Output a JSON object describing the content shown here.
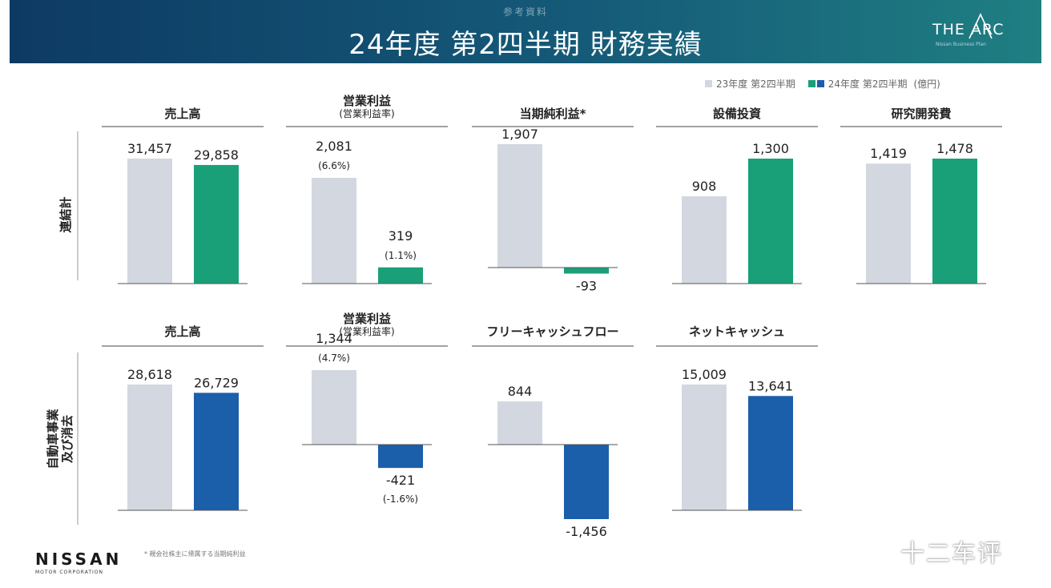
{
  "header": {
    "subtitle": "参考資料",
    "title": "24年度 第2四半期 財務実績",
    "logo_text": "THE ARC",
    "logo_tagline": "Nissan Business Plan"
  },
  "legend": {
    "label_a": "23年度 第2四半期",
    "label_b": "24年度 第2四半期",
    "unit": "(億円)",
    "color_a": "#d3d7e0",
    "color_b_consolidated": "#19a079",
    "color_b_auto": "#1b5eaa"
  },
  "row_labels": {
    "consolidated": "連結計",
    "auto_line1": "自動車事業",
    "auto_line2": "及び消去"
  },
  "footer": {
    "logo_word": "NISSAN",
    "logo_sub": "MOTOR CORPORATION",
    "footnote": "* 親会社株主に帰属する当期純利益",
    "watermark": "十二车评"
  },
  "chart_data": [
    {
      "type": "bar",
      "row": "連結計",
      "title": "売上高",
      "subtitle": "",
      "categories": [
        "23年度 第2四半期",
        "24年度 第2四半期"
      ],
      "values": [
        31457,
        29858
      ],
      "value_labels": [
        "31,457",
        "29,858"
      ],
      "sub_labels": [
        "",
        ""
      ],
      "color_b": "#19a079"
    },
    {
      "type": "bar",
      "row": "連結計",
      "title": "営業利益",
      "subtitle": "(営業利益率)",
      "categories": [
        "23年度 第2四半期",
        "24年度 第2四半期"
      ],
      "values": [
        2081,
        319
      ],
      "value_labels": [
        "2,081",
        "319"
      ],
      "sub_labels": [
        "(6.6%)",
        "(1.1%)"
      ],
      "color_b": "#19a079"
    },
    {
      "type": "bar",
      "row": "連結計",
      "title": "当期純利益*",
      "subtitle": "",
      "categories": [
        "23年度 第2四半期",
        "24年度 第2四半期"
      ],
      "values": [
        1907,
        -93
      ],
      "value_labels": [
        "1,907",
        "-93"
      ],
      "sub_labels": [
        "",
        ""
      ],
      "color_b": "#19a079"
    },
    {
      "type": "bar",
      "row": "連結計",
      "title": "設備投資",
      "subtitle": "",
      "categories": [
        "23年度 第2四半期",
        "24年度 第2四半期"
      ],
      "values": [
        908,
        1300
      ],
      "value_labels": [
        "908",
        "1,300"
      ],
      "sub_labels": [
        "",
        ""
      ],
      "color_b": "#19a079"
    },
    {
      "type": "bar",
      "row": "連結計",
      "title": "研究開発費",
      "subtitle": "",
      "categories": [
        "23年度 第2四半期",
        "24年度 第2四半期"
      ],
      "values": [
        1419,
        1478
      ],
      "value_labels": [
        "1,419",
        "1,478"
      ],
      "sub_labels": [
        "",
        ""
      ],
      "color_b": "#19a079"
    },
    {
      "type": "bar",
      "row": "自動車事業 及び消去",
      "title": "売上高",
      "subtitle": "",
      "categories": [
        "23年度 第2四半期",
        "24年度 第2四半期"
      ],
      "values": [
        28618,
        26729
      ],
      "value_labels": [
        "28,618",
        "26,729"
      ],
      "sub_labels": [
        "",
        ""
      ],
      "color_b": "#1b5eaa"
    },
    {
      "type": "bar",
      "row": "自動車事業 及び消去",
      "title": "営業利益",
      "subtitle": "(営業利益率)",
      "categories": [
        "23年度 第2四半期",
        "24年度 第2四半期"
      ],
      "values": [
        1344,
        -421
      ],
      "value_labels": [
        "1,344",
        "-421"
      ],
      "sub_labels": [
        "(4.7%)",
        "(-1.6%)"
      ],
      "color_b": "#1b5eaa"
    },
    {
      "type": "bar",
      "row": "自動車事業 及び消去",
      "title": "フリーキャッシュフロー",
      "subtitle": "",
      "categories": [
        "23年度 第2四半期",
        "24年度 第2四半期"
      ],
      "values": [
        844,
        -1456
      ],
      "value_labels": [
        "844",
        "-1,456"
      ],
      "sub_labels": [
        "",
        ""
      ],
      "color_b": "#1b5eaa"
    },
    {
      "type": "bar",
      "row": "自動車事業 及び消去",
      "title": "ネットキャッシュ",
      "subtitle": "",
      "categories": [
        "23年度 第2四半期",
        "24年度 第2四半期"
      ],
      "values": [
        15009,
        13641
      ],
      "value_labels": [
        "15,009",
        "13,641"
      ],
      "sub_labels": [
        "",
        ""
      ],
      "color_b": "#1b5eaa"
    }
  ]
}
